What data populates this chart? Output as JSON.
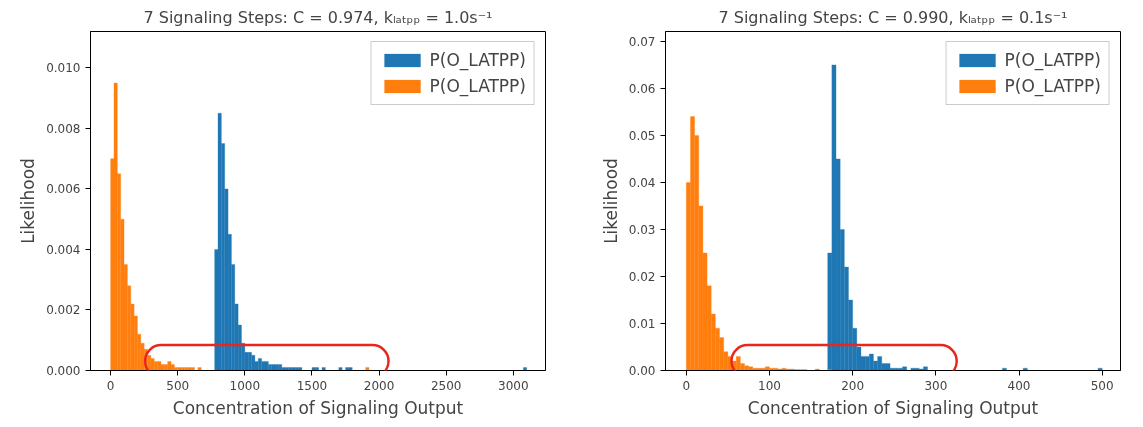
{
  "chart_data": [
    {
      "type": "histogram",
      "title": "7 Signaling Steps: C = 0.974, kₗₐₜₚₚ = 1.0s⁻¹",
      "xlabel": "Concentration of Signaling Output",
      "ylabel": "Likelihood",
      "bins": [
        0,
        25,
        50,
        75,
        100,
        125,
        150,
        175,
        200,
        225,
        250,
        275,
        300,
        325,
        350,
        375,
        400,
        425,
        450,
        475,
        500,
        525,
        550,
        575,
        600,
        625,
        650,
        675,
        700,
        725,
        750,
        775,
        800,
        825,
        850,
        875,
        900,
        925,
        950,
        975,
        1000,
        1025,
        1050,
        1075,
        1100,
        1125,
        1150,
        1175,
        1200,
        1225,
        1250,
        1275,
        1300,
        1325,
        1350,
        1375,
        1400,
        1425,
        1450,
        1475,
        1500,
        1525,
        1550,
        1575,
        1600,
        1625,
        1650,
        1675,
        1700,
        1725,
        1750,
        1775,
        1800,
        1825,
        1850,
        1875,
        1900,
        1925,
        1950,
        1975,
        2000,
        2025,
        2050,
        2075,
        2100,
        2125,
        2150,
        2175,
        2200,
        2225,
        2250,
        2275,
        2300,
        2325,
        2350,
        2375,
        2400,
        2425,
        2450,
        2475,
        2500,
        2525,
        2550,
        2575,
        2600,
        2625,
        2650,
        2675,
        2700,
        2725,
        2750,
        2775,
        2800,
        2825,
        2850,
        2875,
        2900,
        2925,
        2950,
        2975,
        3000,
        3025,
        3050,
        3075,
        3100
      ],
      "series": [
        {
          "name": "P(O_LATPP)",
          "color": "#1f77b4",
          "values": [
            0,
            0,
            0,
            0,
            0,
            0,
            0,
            0,
            0,
            0,
            0,
            0,
            0,
            0,
            0,
            0,
            0,
            0,
            0,
            0,
            0,
            0,
            0,
            0,
            0,
            0,
            0,
            0,
            0,
            0,
            0,
            0.004,
            0.0085,
            0.0075,
            0.006,
            0.0045,
            0.0035,
            0.0022,
            0.0015,
            0.0009,
            0.0006,
            0.0006,
            0.0005,
            0.0003,
            0.0004,
            0.0003,
            0.0003,
            0.0002,
            0.0002,
            0.0002,
            0.0002,
            0.0001,
            0.0001,
            0.0001,
            0.0001,
            0.0001,
            0.0001,
            0,
            0,
            0,
            0.0001,
            0.0001,
            0,
            0.0001,
            0,
            0,
            0,
            0,
            0.0001,
            0,
            0.0001,
            0.0001,
            0,
            0,
            0,
            0,
            0,
            0,
            0,
            0,
            0,
            0,
            0,
            0,
            0,
            0,
            0,
            0,
            0,
            0,
            0,
            0,
            0,
            0,
            0,
            0,
            0,
            0,
            0,
            0,
            0,
            0,
            0,
            0,
            0,
            0,
            0,
            0,
            0,
            0,
            0,
            0,
            0,
            0,
            0,
            0,
            0,
            0,
            0,
            0,
            0,
            0,
            0,
            0.0001
          ]
        },
        {
          "name": "P(O_LATPP)",
          "color": "#ff7f0e",
          "values": [
            0.007,
            0.0095,
            0.0065,
            0.005,
            0.0035,
            0.0028,
            0.0022,
            0.0018,
            0.0012,
            0.0009,
            0.0007,
            0.0005,
            0.0004,
            0.0003,
            0.0003,
            0.0002,
            0.0002,
            0.0003,
            0.0002,
            0.0001,
            0.0001,
            0.0001,
            0.0001,
            0.0001,
            0.0001,
            0,
            0.0001,
            0,
            0,
            0,
            0,
            0,
            0,
            0,
            0,
            0,
            0,
            0,
            0,
            0,
            0,
            0,
            0,
            0,
            0,
            0,
            0,
            0,
            0,
            0,
            0,
            0,
            0,
            0,
            0,
            0,
            0,
            0,
            0,
            0,
            0,
            0,
            0,
            0,
            0,
            0,
            0,
            0,
            0,
            0,
            0,
            0,
            0,
            0,
            0,
            0,
            0.0001,
            0,
            0,
            0,
            0,
            0,
            0,
            0,
            0,
            0,
            0,
            0,
            0,
            0,
            0,
            0,
            0,
            0,
            0,
            0,
            0,
            0,
            0,
            0,
            0,
            0,
            0,
            0,
            0,
            0,
            0,
            0,
            0,
            0,
            0,
            0,
            0,
            0,
            0,
            0,
            0,
            0,
            0,
            0,
            0,
            0,
            0,
            0
          ]
        }
      ],
      "xlim": [
        -150,
        3240
      ],
      "ylim": [
        0,
        0.0112
      ],
      "xticks": [
        0,
        500,
        1000,
        1500,
        2000,
        2500,
        3000
      ],
      "yticks": [
        {
          "value": 0,
          "label": "0.000"
        },
        {
          "value": 0.002,
          "label": "0.002"
        },
        {
          "value": 0.004,
          "label": "0.004"
        },
        {
          "value": 0.006,
          "label": "0.006"
        },
        {
          "value": 0.008,
          "label": "0.008"
        },
        {
          "value": 0.01,
          "label": "0.010"
        }
      ],
      "legend": "top right"
    },
    {
      "type": "histogram",
      "title": "7 Signaling Steps: C = 0.990, kₗₐₜₚₚ = 0.1s⁻¹",
      "xlabel": "Concentration of Signaling Output",
      "ylabel": "Likelihood",
      "bins": [
        0,
        5,
        10,
        15,
        20,
        25,
        30,
        35,
        40,
        45,
        50,
        55,
        60,
        65,
        70,
        75,
        80,
        85,
        90,
        95,
        100,
        105,
        110,
        115,
        120,
        125,
        130,
        135,
        140,
        145,
        150,
        155,
        160,
        165,
        170,
        175,
        180,
        185,
        190,
        195,
        200,
        205,
        210,
        215,
        220,
        225,
        230,
        235,
        240,
        245,
        250,
        255,
        260,
        265,
        270,
        275,
        280,
        285,
        290,
        295,
        300,
        305,
        310,
        315,
        320,
        325,
        330,
        335,
        340,
        345,
        350,
        355,
        360,
        365,
        370,
        375,
        380,
        385,
        390,
        395,
        400,
        405,
        410,
        415,
        420,
        425,
        430,
        435,
        440,
        445,
        450,
        455,
        460,
        465,
        470,
        475,
        480,
        485,
        490,
        495,
        500,
        505
      ],
      "series": [
        {
          "name": "P(O_LATPP)",
          "color": "#1f77b4",
          "values": [
            0,
            0,
            0,
            0,
            0,
            0,
            0,
            0,
            0,
            0,
            0,
            0,
            0,
            0,
            0,
            0,
            0,
            0,
            0,
            0,
            0,
            0,
            0,
            0,
            0,
            0,
            0,
            0,
            0,
            0,
            0,
            0,
            0,
            0,
            0.025,
            0.065,
            0.045,
            0.03,
            0.022,
            0.015,
            0.009,
            0.005,
            0.003,
            0.003,
            0.0035,
            0.002,
            0.003,
            0.0015,
            0.0015,
            0.0005,
            0.0005,
            0.0005,
            0.0008,
            0,
            0.0005,
            0.0005,
            0.0003,
            0.0008,
            0,
            0,
            0,
            0,
            0,
            0,
            0,
            0,
            0,
            0,
            0,
            0,
            0,
            0,
            0,
            0,
            0,
            0,
            0.0005,
            0,
            0,
            0,
            0,
            0.0005,
            0,
            0,
            0,
            0,
            0,
            0,
            0,
            0,
            0,
            0,
            0,
            0,
            0,
            0,
            0,
            0,
            0,
            0.0005,
            0
          ]
        },
        {
          "name": "P(O_LATPP)",
          "color": "#ff7f0e",
          "values": [
            0.04,
            0.054,
            0.05,
            0.035,
            0.025,
            0.018,
            0.012,
            0.009,
            0.007,
            0.004,
            0.003,
            0.002,
            0.003,
            0.0015,
            0.001,
            0.0008,
            0.0005,
            0.0005,
            0.0005,
            0.0008,
            0.0005,
            0.0005,
            0.0003,
            0.0005,
            0.0003,
            0.0003,
            0.0002,
            0.0002,
            0.0002,
            0,
            0,
            0.0003,
            0,
            0,
            0.0002,
            0,
            0,
            0,
            0,
            0,
            0,
            0,
            0,
            0,
            0,
            0,
            0,
            0,
            0,
            0,
            0,
            0,
            0,
            0,
            0,
            0,
            0,
            0,
            0,
            0,
            0,
            0,
            0,
            0,
            0,
            0,
            0,
            0,
            0,
            0,
            0,
            0,
            0,
            0,
            0,
            0,
            0,
            0,
            0,
            0,
            0,
            0,
            0,
            0,
            0,
            0,
            0,
            0,
            0,
            0,
            0,
            0,
            0,
            0,
            0,
            0,
            0,
            0,
            0,
            0,
            0
          ]
        }
      ],
      "xlim": [
        -25,
        522
      ],
      "ylim": [
        0,
        0.0721
      ],
      "xticks": [
        0,
        100,
        200,
        300,
        400,
        500
      ],
      "yticks": [
        {
          "value": 0,
          "label": "0.00"
        },
        {
          "value": 0.01,
          "label": "0.01"
        },
        {
          "value": 0.02,
          "label": "0.02"
        },
        {
          "value": 0.03,
          "label": "0.03"
        },
        {
          "value": 0.04,
          "label": "0.04"
        },
        {
          "value": 0.05,
          "label": "0.05"
        },
        {
          "value": 0.06,
          "label": "0.06"
        },
        {
          "value": 0.07,
          "label": "0.07"
        }
      ],
      "legend": "top right"
    }
  ]
}
